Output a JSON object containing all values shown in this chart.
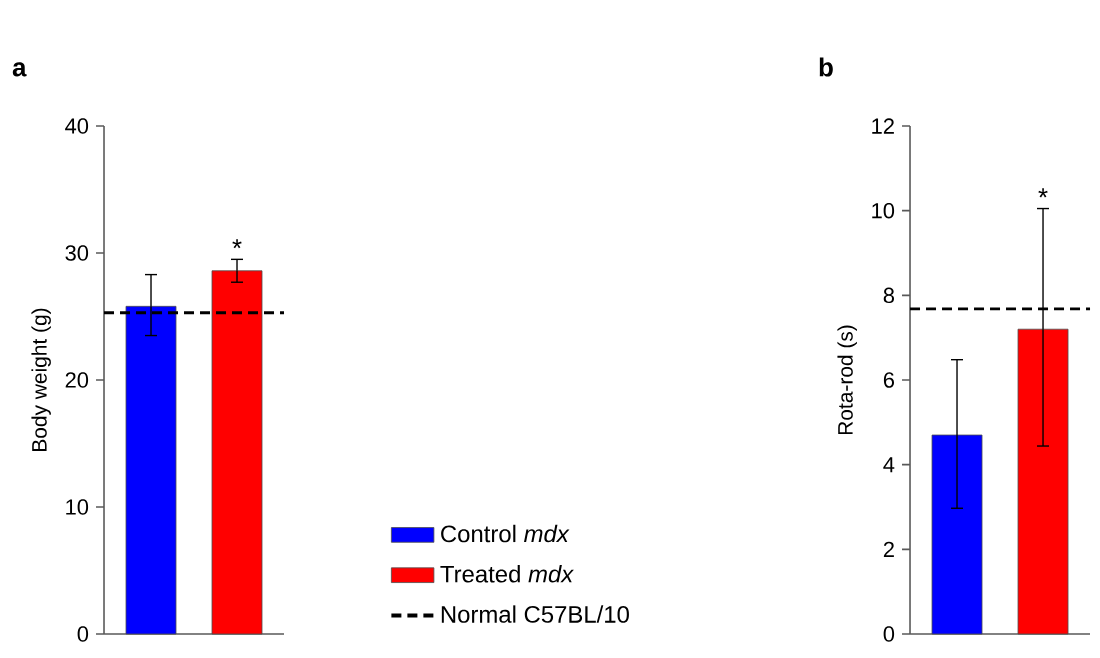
{
  "chart_data": [
    {
      "type": "bar",
      "title": "a",
      "ylabel": "Body weight (g)",
      "categories": [
        null
      ],
      "ylim": [
        0,
        40
      ],
      "yticks": [
        0,
        10,
        20,
        30,
        40
      ],
      "tick_labels": "y",
      "legend": "right",
      "annotations": [
        "*"
      ],
      "ref_lines": [
        {
          "axis": "y",
          "value": 25.3,
          "label": "Normal C57BL/10",
          "line_style": "dashed",
          "color": "#000000"
        }
      ],
      "series": [
        {
          "name": "Control *mdx*",
          "color": "#0000ff",
          "values": [
            25.8
          ],
          "errors": [
            [
              23.5,
              28.3
            ]
          ]
        },
        {
          "name": "Treated *mdx*",
          "color": "#ff0000",
          "values": [
            28.6
          ],
          "errors": [
            [
              27.7,
              29.5
            ]
          ]
        }
      ]
    },
    {
      "type": "bar",
      "title": "b",
      "ylabel": "Rota-rod (s)",
      "categories": [
        null
      ],
      "ylim": [
        0,
        12
      ],
      "yticks": [
        0,
        2,
        4,
        6,
        8,
        10,
        12
      ],
      "tick_labels": "y",
      "annotations": [
        "*"
      ],
      "ref_lines": [
        {
          "axis": "y",
          "value": 7.68,
          "line_style": "dashed",
          "color": "#000000"
        }
      ],
      "series": [
        {
          "color": "#0000ff",
          "values": [
            4.7
          ],
          "errors": [
            [
              2.97,
              6.48
            ]
          ]
        },
        {
          "color": "#ff0000",
          "values": [
            7.2
          ],
          "errors": [
            [
              4.44,
              10.05
            ]
          ]
        }
      ]
    }
  ]
}
